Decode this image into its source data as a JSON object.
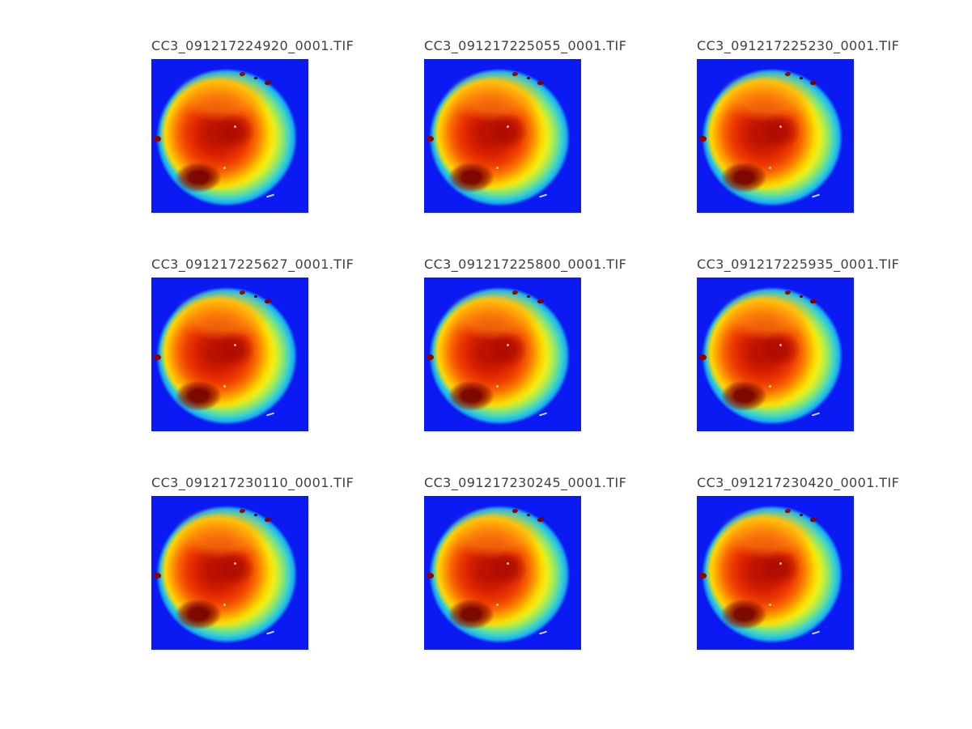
{
  "figure": {
    "background_color": "#ffffff",
    "title_color": "#404040",
    "subplots": [
      {
        "title": "CC3_091217224920_0001.TIF"
      },
      {
        "title": "CC3_091217225055_0001.TIF"
      },
      {
        "title": "CC3_091217225230_0001.TIF"
      },
      {
        "title": "CC3_091217225627_0001.TIF"
      },
      {
        "title": "CC3_091217225800_0001.TIF"
      },
      {
        "title": "CC3_091217225935_0001.TIF"
      },
      {
        "title": "CC3_091217230110_0001.TIF"
      },
      {
        "title": "CC3_091217230245_0001.TIF"
      },
      {
        "title": "CC3_091217230420_0001.TIF"
      }
    ],
    "image_style": {
      "description": "all-sky fisheye camera frames displayed with jet colormap",
      "sky_background_blue": "#0b1af2",
      "jet_palette": [
        "#7d0000",
        "#bc1200",
        "#ee3c00",
        "#f96a00",
        "#ffa200",
        "#ffec00",
        "#bfec40",
        "#7ce47f",
        "#3ed2ca",
        "#18aef2",
        "#0b1af2"
      ]
    }
  },
  "chart_data": {
    "type": "heatmap",
    "layout": "3x3 montage of raster image panels, no axes or tick labels",
    "colormap": "jet",
    "grid": false,
    "panels": [
      "CC3_091217224920_0001.TIF",
      "CC3_091217225055_0001.TIF",
      "CC3_091217225230_0001.TIF",
      "CC3_091217225627_0001.TIF",
      "CC3_091217225800_0001.TIF",
      "CC3_091217225935_0001.TIF",
      "CC3_091217230110_0001.TIF",
      "CC3_091217230245_0001.TIF",
      "CC3_091217230420_0001.TIF"
    ]
  }
}
